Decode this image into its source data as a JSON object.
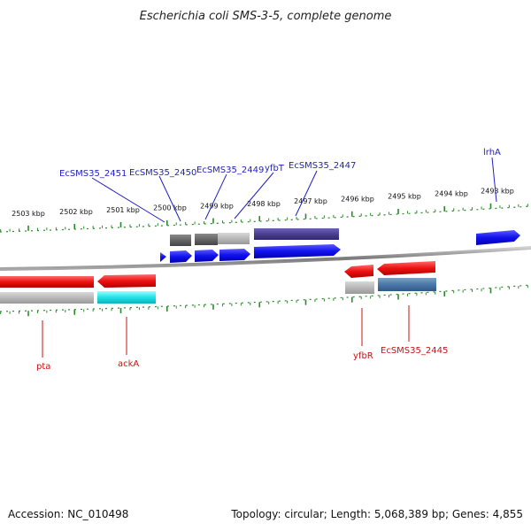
{
  "title": "Escherichia coli SMS-3-5, complete genome",
  "footer": {
    "accession": "Accession: NC_010498",
    "topology": "Topology: circular; Length: 5,068,389 bp; Genes: 4,855"
  },
  "ticks": [
    "2503 kbp",
    "2502 kbp",
    "2501 kbp",
    "2500 kbp",
    "2499 kbp",
    "2498 kbp",
    "2497 kbp",
    "2496 kbp",
    "2495 kbp",
    "2494 kbp",
    "2493 kbp"
  ],
  "gene_labels": {
    "forward": [
      "EcSMS35_2451",
      "EcSMS35_2450",
      "EcSMS35_2449",
      "yfbT",
      "EcSMS35_2447",
      "lrhA"
    ],
    "reverse": [
      "pta",
      "ackA",
      "yfbR",
      "EcSMS35_2445"
    ]
  },
  "colors": {
    "forward_label": "#1f1fbf",
    "reverse_label": "#cc1111",
    "forward_gene": "#1111ee",
    "reverse_gene": "#ee1111",
    "tick_green": "#2a8a2a",
    "backbone": "#888888"
  }
}
